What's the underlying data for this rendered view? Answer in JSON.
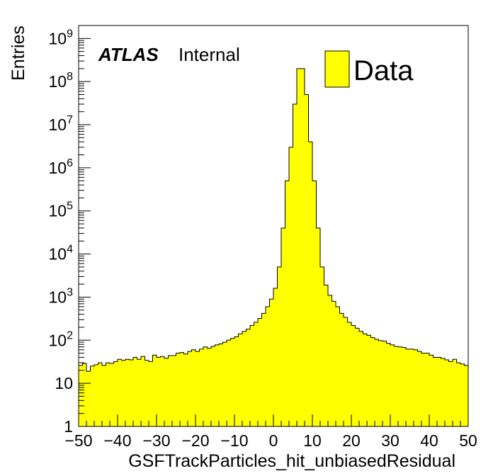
{
  "chart_data": {
    "type": "bar",
    "title": "",
    "xlabel": "GSFTrackParticles_hit_unbiasedResidual",
    "ylabel": "Entries",
    "xlim": [
      -50,
      50
    ],
    "ylim": [
      1,
      2000000000
    ],
    "yscale": "log",
    "x_ticks": [
      -50,
      -40,
      -30,
      -20,
      -10,
      0,
      10,
      20,
      30,
      40,
      50
    ],
    "x_tick_labels": [
      "−50",
      "−40",
      "−30",
      "−20",
      "−10",
      "0",
      "10",
      "20",
      "30",
      "40",
      "50"
    ],
    "y_ticks": [
      {
        "value": 1,
        "base": "1",
        "exp": ""
      },
      {
        "value": 10,
        "base": "10",
        "exp": ""
      },
      {
        "value": 100,
        "base": "10",
        "exp": "2"
      },
      {
        "value": 1000,
        "base": "10",
        "exp": "3"
      },
      {
        "value": 10000,
        "base": "10",
        "exp": "4"
      },
      {
        "value": 100000,
        "base": "10",
        "exp": "5"
      },
      {
        "value": 1000000,
        "base": "10",
        "exp": "6"
      },
      {
        "value": 10000000,
        "base": "10",
        "exp": "7"
      },
      {
        "value": 100000000,
        "base": "10",
        "exp": "8"
      },
      {
        "value": 1000000000,
        "base": "10",
        "exp": "9"
      }
    ],
    "bin_width": 1,
    "bin_edges_start": -50,
    "fill_color": "#ffff00",
    "line_color": "#000000",
    "grid": false,
    "legend_position": "top-right",
    "series": [
      {
        "name": "Data",
        "values": [
          26,
          29,
          19,
          25,
          27,
          30,
          26,
          30,
          29,
          32,
          36,
          34,
          36,
          35,
          40,
          36,
          42,
          34,
          32,
          45,
          40,
          42,
          38,
          44,
          44,
          50,
          52,
          48,
          55,
          60,
          55,
          62,
          70,
          65,
          72,
          78,
          82,
          90,
          100,
          110,
          120,
          140,
          160,
          180,
          220,
          260,
          320,
          420,
          600,
          900,
          1600,
          5000,
          40000,
          500000,
          3000000,
          30000000,
          200000000,
          200000000,
          50000000,
          4000000,
          500000,
          40000,
          5000,
          1900,
          1100,
          800,
          600,
          420,
          340,
          260,
          220,
          190,
          160,
          140,
          130,
          115,
          105,
          98,
          95,
          85,
          78,
          72,
          70,
          68,
          62,
          62,
          60,
          55,
          50,
          50,
          45,
          40,
          40,
          38,
          35,
          32,
          36,
          30,
          28,
          26
        ]
      }
    ],
    "annotations": {
      "experiment": "ATLAS",
      "status": "Internal"
    }
  }
}
